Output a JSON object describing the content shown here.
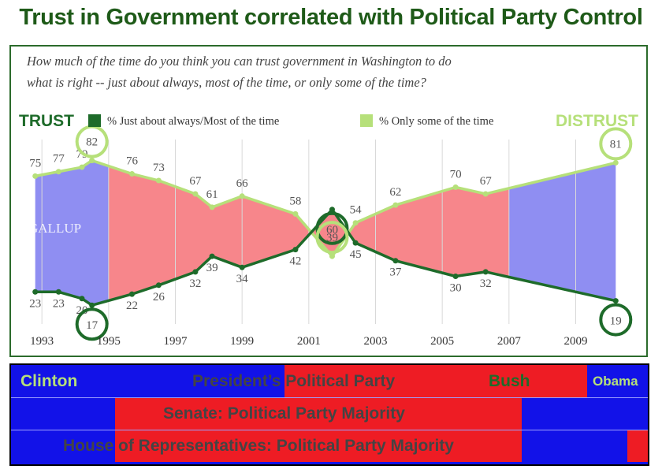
{
  "page": {
    "title": "Trust in Government correlated with Political Party Control"
  },
  "colors": {
    "trust_line": "#1e6b2a",
    "distrust_line": "#b6e07a",
    "democrat": "#1212e8",
    "republican": "#ee1c24",
    "dem_fill": "#8f8ef2",
    "rep_fill": "#f7868b",
    "title": "#1e5a18",
    "trust_text": "#1e6b2a",
    "distrust_text": "#b6e07a"
  },
  "chart_data": {
    "type": "line",
    "question": "How much of the time do you think you can trust government in Washington to do what is right -- just about always, most of the time, or only some of the time?",
    "trust_label": "TRUST",
    "distrust_label": "DISTRUST",
    "watermark": "GALLUP",
    "x_ticks": [
      "1993",
      "1995",
      "1997",
      "1999",
      "2001",
      "2003",
      "2005",
      "2007",
      "2009"
    ],
    "xlim": [
      1992.5,
      2010.5
    ],
    "ylim": [
      10,
      90
    ],
    "series": [
      {
        "name": "% Just about always/Most of the time",
        "role": "trust",
        "points": [
          {
            "x": 1992.8,
            "y": 23,
            "label": "23"
          },
          {
            "x": 1993.5,
            "y": 23,
            "label": "23"
          },
          {
            "x": 1994.2,
            "y": 20,
            "label": "20"
          },
          {
            "x": 1994.5,
            "y": 17,
            "label": "17"
          },
          {
            "x": 1995.7,
            "y": 22,
            "label": "22"
          },
          {
            "x": 1996.5,
            "y": 26,
            "label": "26"
          },
          {
            "x": 1997.6,
            "y": 32,
            "label": "32"
          },
          {
            "x": 1998.1,
            "y": 39,
            "label": "39"
          },
          {
            "x": 1999.0,
            "y": 34,
            "label": "34"
          },
          {
            "x": 2000.6,
            "y": 42,
            "label": "42"
          },
          {
            "x": 2001.7,
            "y": 60,
            "label": "60"
          },
          {
            "x": 2002.4,
            "y": 45,
            "label": "45"
          },
          {
            "x": 2003.6,
            "y": 37,
            "label": "37"
          },
          {
            "x": 2005.4,
            "y": 30,
            "label": "30"
          },
          {
            "x": 2006.3,
            "y": 32,
            "label": "32"
          },
          {
            "x": 2010.2,
            "y": 19,
            "label": "19"
          }
        ]
      },
      {
        "name": "% Only some of the time",
        "role": "distrust",
        "points": [
          {
            "x": 1992.8,
            "y": 75,
            "label": "75"
          },
          {
            "x": 1993.5,
            "y": 77,
            "label": "77"
          },
          {
            "x": 1994.2,
            "y": 79,
            "label": "79"
          },
          {
            "x": 1994.5,
            "y": 82,
            "label": "82"
          },
          {
            "x": 1995.7,
            "y": 76,
            "label": "76"
          },
          {
            "x": 1996.5,
            "y": 73,
            "label": "73"
          },
          {
            "x": 1997.6,
            "y": 67,
            "label": "67"
          },
          {
            "x": 1998.1,
            "y": 61,
            "label": "61"
          },
          {
            "x": 1999.0,
            "y": 66,
            "label": "66"
          },
          {
            "x": 2000.6,
            "y": 58,
            "label": "58"
          },
          {
            "x": 2001.7,
            "y": 39,
            "label": "39"
          },
          {
            "x": 2002.4,
            "y": 54,
            "label": "54"
          },
          {
            "x": 2003.6,
            "y": 62,
            "label": "62"
          },
          {
            "x": 2005.4,
            "y": 70,
            "label": "70"
          },
          {
            "x": 2006.3,
            "y": 67,
            "label": "67"
          },
          {
            "x": 2010.2,
            "y": 81,
            "label": "81"
          }
        ]
      }
    ],
    "highlighted_labels": [
      {
        "series": "distrust",
        "x": 1994.5,
        "label": "82"
      },
      {
        "series": "trust",
        "x": 1994.5,
        "label": "17"
      },
      {
        "series": "trust",
        "x": 2001.7,
        "label": "60"
      },
      {
        "series": "distrust",
        "x": 2001.7,
        "label": "39"
      },
      {
        "series": "distrust",
        "x": 2010.2,
        "label": "81"
      },
      {
        "series": "trust",
        "x": 2010.2,
        "label": "19"
      }
    ],
    "party_shading": [
      {
        "from": 1992.8,
        "to": 1995.0,
        "party": "democrat"
      },
      {
        "from": 1995.0,
        "to": 2007.0,
        "party": "republican"
      },
      {
        "from": 2007.0,
        "to": 2010.2,
        "party": "democrat"
      }
    ]
  },
  "party_panel": {
    "rows": [
      {
        "label": "President’s Political Party",
        "segments": [
          {
            "from": 0.0,
            "to": 0.43,
            "party": "democrat"
          },
          {
            "from": 0.43,
            "to": 0.905,
            "party": "republican"
          },
          {
            "from": 0.905,
            "to": 1.0,
            "party": "democrat"
          }
        ],
        "names": [
          "Clinton",
          "Bush",
          "Obama"
        ]
      },
      {
        "label": "Senate: Political Party Majority",
        "segments": [
          {
            "from": 0.0,
            "to": 0.163,
            "party": "democrat"
          },
          {
            "from": 0.163,
            "to": 0.802,
            "party": "republican"
          },
          {
            "from": 0.802,
            "to": 1.0,
            "party": "democrat"
          }
        ]
      },
      {
        "label": "House of Representatives: Political Party Majority",
        "segments": [
          {
            "from": 0.0,
            "to": 0.163,
            "party": "democrat"
          },
          {
            "from": 0.163,
            "to": 0.802,
            "party": "republican"
          },
          {
            "from": 0.802,
            "to": 0.968,
            "party": "democrat"
          },
          {
            "from": 0.968,
            "to": 1.0,
            "party": "republican"
          }
        ]
      }
    ]
  }
}
